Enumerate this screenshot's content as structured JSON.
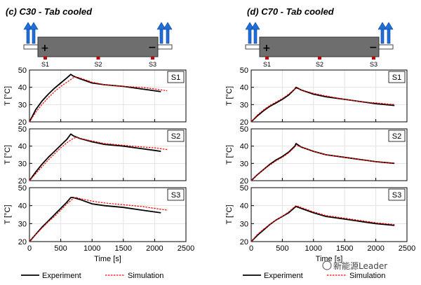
{
  "watermark": "新能源Leader",
  "legend": {
    "experiment": "Experiment",
    "simulation": "Simulation"
  },
  "colors": {
    "experiment": "#000000",
    "simulation": "#ff0000",
    "cell": "#6e6e6e",
    "arrow": "#1e6fd9"
  },
  "chart_data": [
    {
      "type": "line",
      "title": "(c) C30 - Tab cooled",
      "cell": {
        "plus": "+",
        "minus": "−",
        "sensors": [
          "S1",
          "S2",
          "S3"
        ]
      },
      "xlabel": "Time [s]",
      "ylabel": "T [°C]",
      "xlim": [
        0,
        2500
      ],
      "ylim": [
        20,
        50
      ],
      "xticks": [
        0,
        500,
        1000,
        1500,
        2000,
        2500
      ],
      "yticks": [
        20,
        30,
        40,
        50
      ],
      "grid": true,
      "panels": [
        {
          "label": "S1",
          "series": [
            {
              "name": "Experiment",
              "x": [
                0,
                100,
                200,
                300,
                400,
                500,
                600,
                660,
                700,
                800,
                1000,
                1200,
                1500,
                1800,
                2000,
                2100
              ],
              "y": [
                20,
                27,
                32,
                36,
                39.5,
                42.5,
                45.5,
                47.5,
                46.5,
                45,
                42.5,
                41.5,
                40.5,
                39,
                38,
                37.5
              ]
            },
            {
              "name": "Simulation",
              "x": [
                0,
                100,
                200,
                300,
                400,
                500,
                600,
                700,
                750,
                800,
                1000,
                1200,
                1500,
                1800,
                2000,
                2200
              ],
              "y": [
                20,
                25.5,
                30,
                34,
                37.5,
                40.5,
                43,
                45.5,
                46,
                45.5,
                43,
                41.5,
                40.5,
                40,
                39,
                38
              ]
            }
          ]
        },
        {
          "label": "S2",
          "series": [
            {
              "name": "Experiment",
              "x": [
                0,
                100,
                200,
                300,
                400,
                500,
                600,
                660,
                700,
                800,
                1000,
                1200,
                1500,
                1800,
                2000,
                2100
              ],
              "y": [
                20,
                25,
                29.5,
                33.5,
                37,
                40.5,
                44,
                47,
                46,
                44.5,
                42.5,
                41,
                40,
                38.5,
                37.5,
                37
              ]
            },
            {
              "name": "Simulation",
              "x": [
                0,
                100,
                200,
                300,
                400,
                500,
                600,
                700,
                750,
                800,
                1000,
                1200,
                1500,
                1800,
                2000,
                2200
              ],
              "y": [
                20,
                24,
                28,
                32,
                35.5,
                39,
                42,
                44.5,
                45,
                44.5,
                43,
                41.5,
                40.5,
                39.5,
                39,
                38
              ]
            }
          ]
        },
        {
          "label": "S3",
          "series": [
            {
              "name": "Experiment",
              "x": [
                0,
                100,
                200,
                300,
                400,
                500,
                600,
                660,
                700,
                800,
                1000,
                1200,
                1500,
                1800,
                2000,
                2100
              ],
              "y": [
                20,
                24,
                28,
                31.5,
                35,
                38.5,
                42,
                44.5,
                44.5,
                43.5,
                41,
                40,
                39,
                37.5,
                36.5,
                36
              ]
            },
            {
              "name": "Simulation",
              "x": [
                0,
                100,
                200,
                300,
                400,
                500,
                600,
                700,
                750,
                800,
                1000,
                1200,
                1500,
                1800,
                2000,
                2200
              ],
              "y": [
                20,
                24,
                27.5,
                31,
                34,
                37.5,
                41,
                44,
                44.5,
                44,
                42.5,
                41.5,
                40.5,
                39.5,
                38.5,
                37.5
              ]
            }
          ]
        }
      ]
    },
    {
      "type": "line",
      "title": "(d) C70 - Tab cooled",
      "cell": {
        "plus": "+",
        "minus": "−",
        "sensors": [
          "S1",
          "S2",
          "S3"
        ]
      },
      "xlabel": "Time [s]",
      "ylabel": "T [°C]",
      "xlim": [
        0,
        2500
      ],
      "ylim": [
        20,
        50
      ],
      "xticks": [
        0,
        500,
        1000,
        1500,
        2000,
        2500
      ],
      "yticks": [
        20,
        30,
        40,
        50
      ],
      "grid": true,
      "panels": [
        {
          "label": "S1",
          "series": [
            {
              "name": "Experiment",
              "x": [
                0,
                100,
                200,
                300,
                400,
                500,
                600,
                700,
                720,
                800,
                1000,
                1200,
                1500,
                1800,
                2000,
                2300
              ],
              "y": [
                20,
                23.5,
                26.5,
                29,
                31,
                33,
                35.5,
                39,
                40,
                38.5,
                36,
                34.5,
                33,
                31.5,
                30.5,
                29.5
              ]
            },
            {
              "name": "Simulation",
              "x": [
                0,
                100,
                200,
                300,
                400,
                500,
                600,
                700,
                720,
                800,
                1000,
                1200,
                1500,
                1800,
                2000,
                2300
              ],
              "y": [
                20,
                24,
                27,
                29.5,
                31.5,
                33.5,
                36,
                39,
                39.5,
                38.5,
                36.5,
                35,
                33,
                31.5,
                31,
                30
              ]
            }
          ]
        },
        {
          "label": "S2",
          "series": [
            {
              "name": "Experiment",
              "x": [
                0,
                100,
                200,
                300,
                400,
                500,
                600,
                700,
                720,
                800,
                1000,
                1200,
                1500,
                1800,
                2000,
                2300
              ],
              "y": [
                20,
                23.5,
                26.5,
                29.5,
                32,
                34,
                36.5,
                40,
                41.5,
                39.5,
                37,
                35,
                33.5,
                32,
                31,
                30
              ]
            },
            {
              "name": "Simulation",
              "x": [
                0,
                100,
                200,
                300,
                400,
                500,
                600,
                700,
                720,
                800,
                1000,
                1200,
                1500,
                1800,
                2000,
                2300
              ],
              "y": [
                20,
                23.5,
                26.5,
                29,
                31.5,
                33.5,
                36,
                39.5,
                40.5,
                39.5,
                37,
                35,
                33.5,
                32,
                31,
                30
              ]
            }
          ]
        },
        {
          "label": "S3",
          "series": [
            {
              "name": "Experiment",
              "x": [
                0,
                100,
                200,
                300,
                400,
                500,
                600,
                700,
                720,
                800,
                1000,
                1200,
                1500,
                1800,
                2000,
                2300
              ],
              "y": [
                20,
                23.5,
                26.5,
                29.5,
                32,
                34,
                36,
                39,
                39.5,
                38.5,
                36,
                34,
                32.5,
                31,
                30,
                29
              ]
            },
            {
              "name": "Simulation",
              "x": [
                0,
                100,
                200,
                300,
                400,
                500,
                600,
                700,
                720,
                800,
                1000,
                1200,
                1500,
                1800,
                2000,
                2300
              ],
              "y": [
                20,
                24,
                27,
                29.5,
                32,
                34,
                36.5,
                39.5,
                40,
                39,
                36.5,
                34.5,
                33,
                31.5,
                30.5,
                29.5
              ]
            }
          ]
        }
      ]
    }
  ]
}
